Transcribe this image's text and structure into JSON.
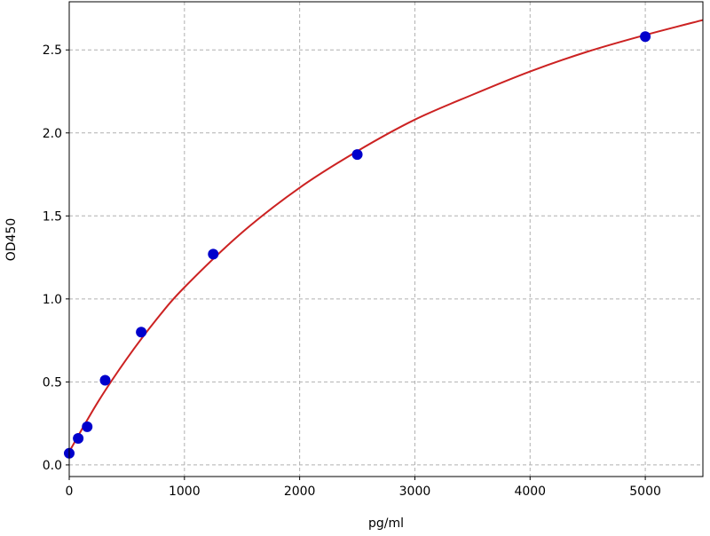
{
  "chart_data": {
    "type": "scatter",
    "title": "",
    "xlabel": "pg/ml",
    "ylabel": "OD450",
    "xlim": [
      0,
      5500
    ],
    "ylim": [
      -0.07,
      2.79
    ],
    "grid": true,
    "x_ticks": [
      "0",
      "1000",
      "2000",
      "3000",
      "4000",
      "5000"
    ],
    "y_ticks": [
      "0.0",
      "0.5",
      "1.0",
      "1.5",
      "2.0",
      "2.5"
    ],
    "points": {
      "color": "#0000cc",
      "x": [
        0,
        78,
        156,
        312,
        625,
        1250,
        2500,
        5000
      ],
      "y": [
        0.07,
        0.16,
        0.23,
        0.51,
        0.8,
        1.27,
        1.87,
        2.58
      ]
    },
    "fit_curve": {
      "color": "#cc2222",
      "x": [
        0,
        250,
        500,
        750,
        1000,
        1500,
        2000,
        2500,
        3000,
        3500,
        4000,
        4500,
        5000,
        5500
      ],
      "y": [
        0.08,
        0.38,
        0.64,
        0.87,
        1.07,
        1.4,
        1.67,
        1.89,
        2.08,
        2.23,
        2.37,
        2.49,
        2.59,
        2.68
      ]
    }
  }
}
